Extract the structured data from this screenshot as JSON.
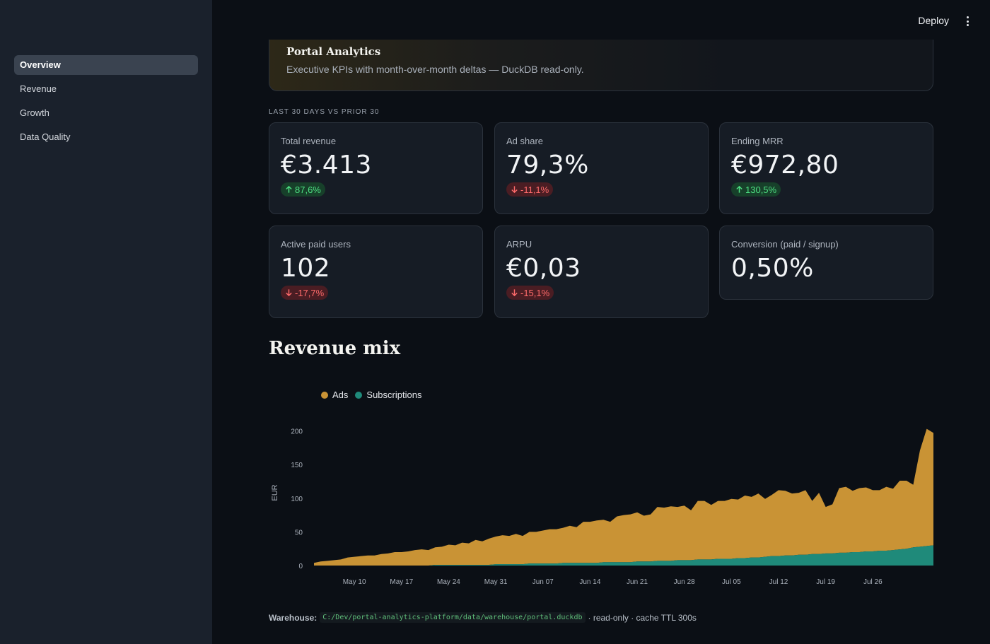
{
  "sidebar": {
    "items": [
      {
        "label": "Overview",
        "active": true
      },
      {
        "label": "Revenue",
        "active": false
      },
      {
        "label": "Growth",
        "active": false
      },
      {
        "label": "Data Quality",
        "active": false
      }
    ]
  },
  "topbar": {
    "deploy_label": "Deploy",
    "menu_icon": "kebab-menu-icon"
  },
  "hero": {
    "title": "Portal Analytics",
    "subtitle": "Executive KPIs with month-over-month deltas — DuckDB read-only."
  },
  "kpi_section_label": "LAST 30 DAYS VS PRIOR 30",
  "kpis": [
    {
      "label": "Total revenue",
      "value": "€3.413",
      "delta": "87,6%",
      "direction": "up"
    },
    {
      "label": "Ad share",
      "value": "79,3%",
      "delta": "-11,1%",
      "direction": "down"
    },
    {
      "label": "Ending MRR",
      "value": "€972,80",
      "delta": "130,5%",
      "direction": "up"
    },
    {
      "label": "Active paid users",
      "value": "102",
      "delta": "-17,7%",
      "direction": "down"
    },
    {
      "label": "ARPU",
      "value": "€0,03",
      "delta": "-15,1%",
      "direction": "down"
    },
    {
      "label": "Conversion (paid / signup)",
      "value": "0,50%",
      "delta": null,
      "direction": null
    }
  ],
  "revenue_mix": {
    "heading": "Revenue mix"
  },
  "colors": {
    "ads": "#c99335",
    "subscriptions": "#1f8a7a",
    "delta_up": "#4ee083",
    "delta_down": "#ff6b6b"
  },
  "chart_data": {
    "type": "area",
    "stacked": true,
    "ylabel": "EUR",
    "ylim": [
      0,
      210
    ],
    "yticks": [
      0,
      50,
      100,
      150,
      200
    ],
    "x_tick_labels": [
      "May 10",
      "May 17",
      "May 24",
      "May 31",
      "Jun 07",
      "Jun 14",
      "Jun 21",
      "Jun 28",
      "Jul 05",
      "Jul 12",
      "Jul 19",
      "Jul 26"
    ],
    "x_start": "May 10",
    "legend": "top-left",
    "series": [
      {
        "name": "Ads",
        "values": [
          4,
          6,
          7,
          8,
          9,
          12,
          13,
          14,
          15,
          15,
          17,
          18,
          20,
          20,
          21,
          23,
          24,
          23,
          26,
          27,
          30,
          29,
          33,
          32,
          37,
          35,
          39,
          41,
          43,
          42,
          45,
          42,
          47,
          47,
          49,
          51,
          51,
          52,
          55,
          53,
          61,
          61,
          63,
          63,
          60,
          68,
          70,
          71,
          73,
          68,
          70,
          80,
          79,
          81,
          79,
          81,
          74,
          87,
          87,
          81,
          86,
          86,
          89,
          87,
          93,
          90,
          95,
          86,
          91,
          98,
          96,
          92,
          92,
          96,
          79,
          91,
          69,
          73,
          96,
          98,
          91,
          95,
          95,
          91,
          90,
          95,
          91,
          102,
          101,
          93,
          143,
          174,
          167
        ]
      },
      {
        "name": "Subscriptions",
        "values": [
          0,
          0,
          0,
          0,
          0,
          0,
          0,
          0,
          0,
          0,
          0,
          0,
          0,
          0,
          0,
          0,
          0,
          0,
          1,
          1,
          1,
          1,
          1,
          1,
          1,
          1,
          1,
          2,
          2,
          2,
          2,
          2,
          3,
          3,
          3,
          3,
          3,
          4,
          4,
          4,
          4,
          4,
          4,
          5,
          5,
          5,
          5,
          5,
          6,
          6,
          6,
          7,
          7,
          7,
          8,
          8,
          8,
          9,
          9,
          9,
          10,
          10,
          10,
          11,
          11,
          12,
          12,
          13,
          14,
          14,
          15,
          15,
          16,
          16,
          17,
          17,
          18,
          18,
          19,
          19,
          20,
          20,
          21,
          21,
          22,
          22,
          23,
          24,
          25,
          27,
          28,
          29,
          30
        ]
      }
    ]
  },
  "footer": {
    "label": "Warehouse:",
    "path": "C:/Dev/portal-analytics-platform/data/warehouse/portal.duckdb",
    "suffix": "· read-only · cache TTL 300s"
  }
}
